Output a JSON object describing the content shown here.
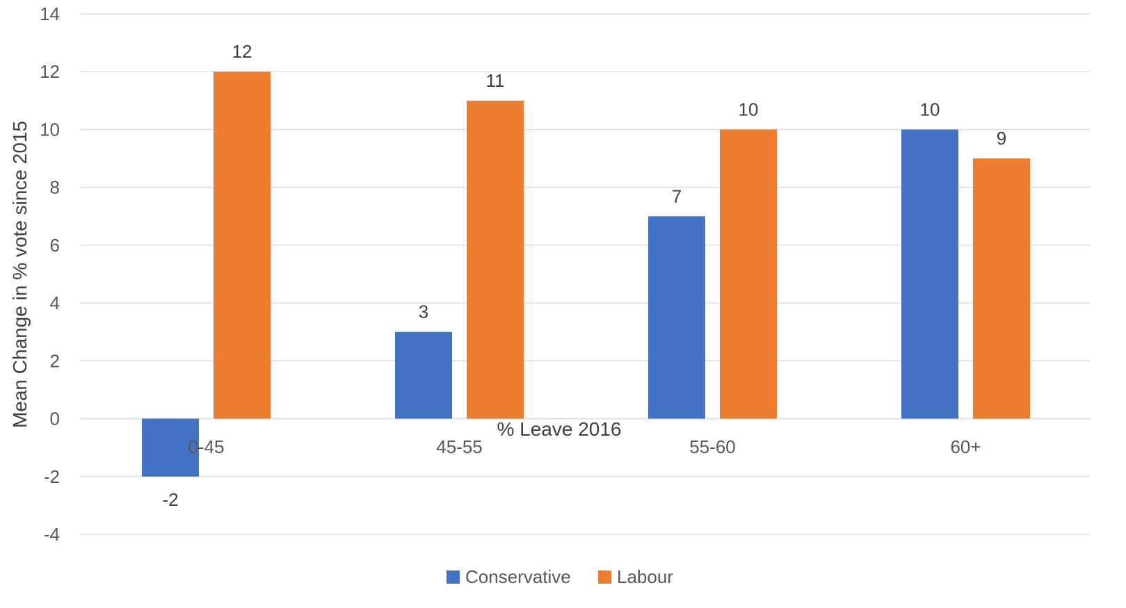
{
  "chart_data": {
    "type": "bar",
    "title": "",
    "xlabel": "% Leave 2016",
    "ylabel": "Mean Change in % vote since 2015",
    "categories": [
      "0-45",
      "45-55",
      "55-60",
      "60+"
    ],
    "series": [
      {
        "name": "Conservative",
        "color": "#4472C4",
        "values": [
          -2,
          3,
          7,
          10
        ]
      },
      {
        "name": "Labour",
        "color": "#ED7D31",
        "values": [
          12,
          11,
          10,
          9
        ]
      }
    ],
    "ylim": [
      -4,
      14
    ],
    "yticks": [
      "-4",
      "-2",
      "0",
      "2",
      "4",
      "6",
      "8",
      "10",
      "12",
      "14"
    ],
    "grid": true,
    "legend_position": "bottom",
    "data_labels": true
  }
}
